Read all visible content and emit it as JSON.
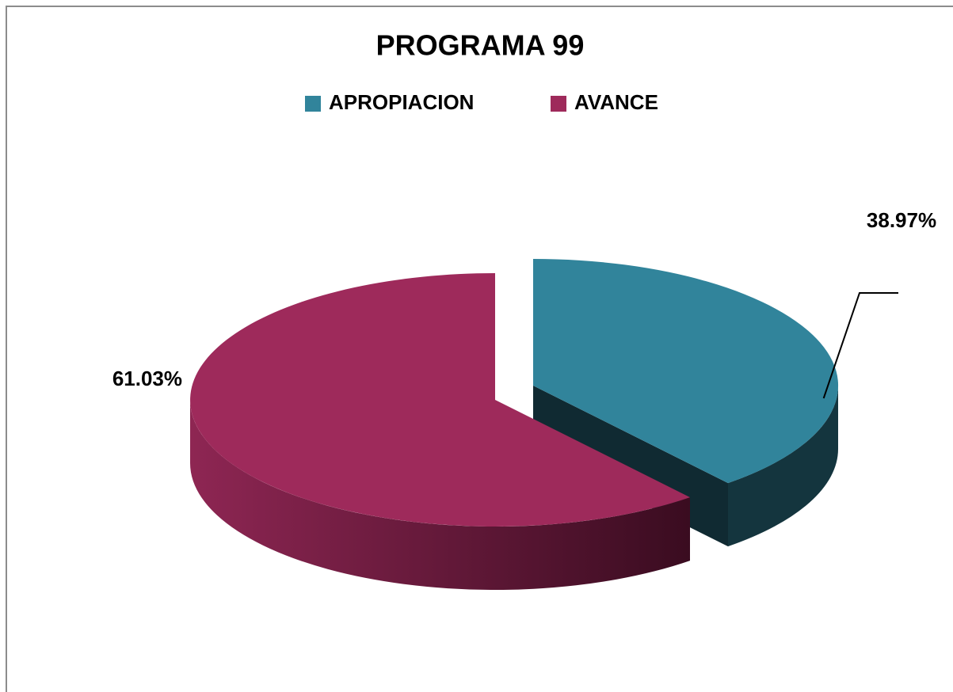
{
  "chart_data": {
    "type": "pie",
    "title": "PROGRAMA 99",
    "categories": [
      "APROPIACION",
      "AVANCE"
    ],
    "values": [
      38.97,
      61.03
    ],
    "value_labels": [
      "38.97%",
      "61.03%"
    ],
    "colors": [
      "#31849b",
      "#9e2a5b"
    ],
    "legend": "top"
  }
}
